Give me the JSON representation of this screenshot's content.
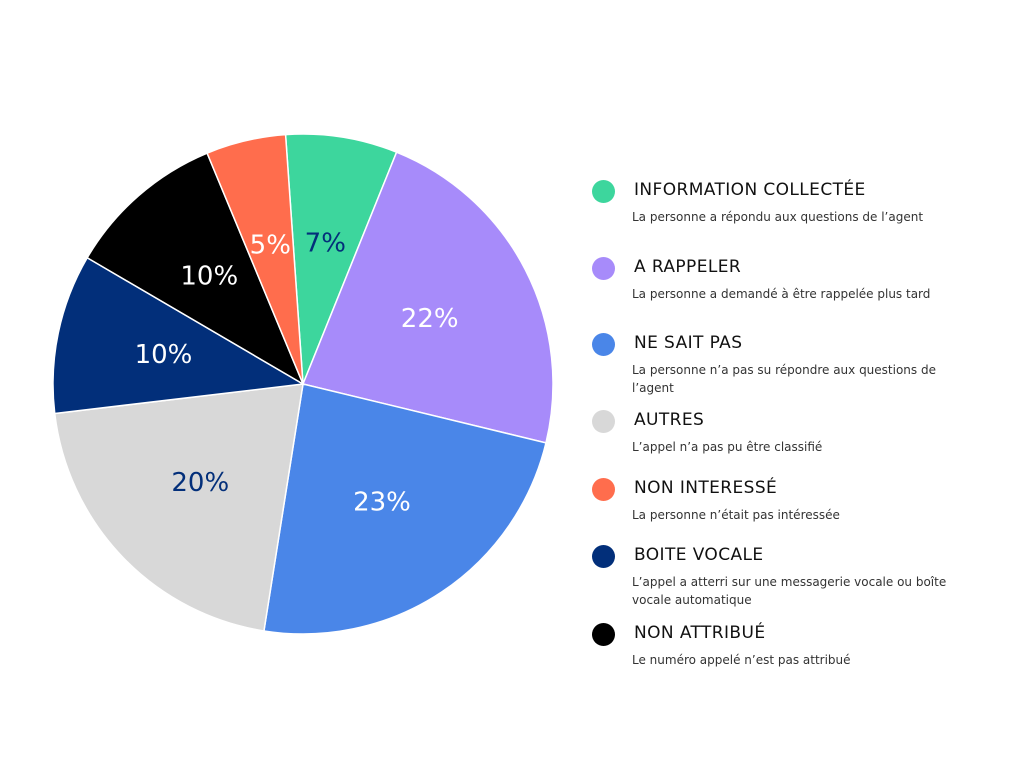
{
  "chart_data": {
    "type": "pie",
    "slices": [
      {
        "label": "INFORMATION COLLECTÉE",
        "value": 7,
        "value_label": "7%",
        "color": "#3dd69d",
        "label_color": "#032f7a"
      },
      {
        "label": "A RAPPELER",
        "value": 22,
        "value_label": "22%",
        "color": "#a78bfa",
        "label_color": "#ffffff"
      },
      {
        "label": "NE SAIT PAS",
        "value": 23,
        "value_label": "23%",
        "color": "#4a86e8",
        "label_color": "#ffffff"
      },
      {
        "label": "AUTRES",
        "value": 20,
        "value_label": "20%",
        "color": "#d8d8d8",
        "label_color": "#032f7a"
      },
      {
        "label": "BOITE VOCALE",
        "value": 10,
        "value_label": "10%",
        "color": "#022f7a",
        "label_color": "#ffffff"
      },
      {
        "label": "NON ATTRIBUÉ",
        "value": 10,
        "value_label": "10%",
        "color": "#000000",
        "label_color": "#ffffff"
      },
      {
        "label": "NON INTERESSÉ",
        "value": 5,
        "value_label": "5%",
        "color": "#ff6d4d",
        "label_color": "#ffffff"
      }
    ],
    "legend_position": "right"
  },
  "legend": [
    {
      "title": "INFORMATION COLLECTÉE",
      "description": "La personne a répondu aux questions de l’agent",
      "color": "#3dd69d"
    },
    {
      "title": "A RAPPELER",
      "description": "La personne a demandé à être rappelée plus tard",
      "color": "#a78bfa"
    },
    {
      "title": "NE SAIT PAS",
      "description": "La personne n’a pas su répondre aux questions de l’agent",
      "color": "#4a86e8"
    },
    {
      "title": "AUTRES",
      "description": "L’appel n’a pas pu être classifié",
      "color": "#d8d8d8"
    },
    {
      "title": "NON INTERESSÉ",
      "description": "La personne n’était pas intéressée",
      "color": "#ff6d4d"
    },
    {
      "title": "BOITE VOCALE",
      "description": "L’appel a atterri sur une messagerie vocale ou boîte vocale automatique",
      "color": "#022f7a"
    },
    {
      "title": "NON ATTRIBUÉ",
      "description": "Le numéro appelé n’est pas attribué",
      "color": "#000000"
    }
  ]
}
